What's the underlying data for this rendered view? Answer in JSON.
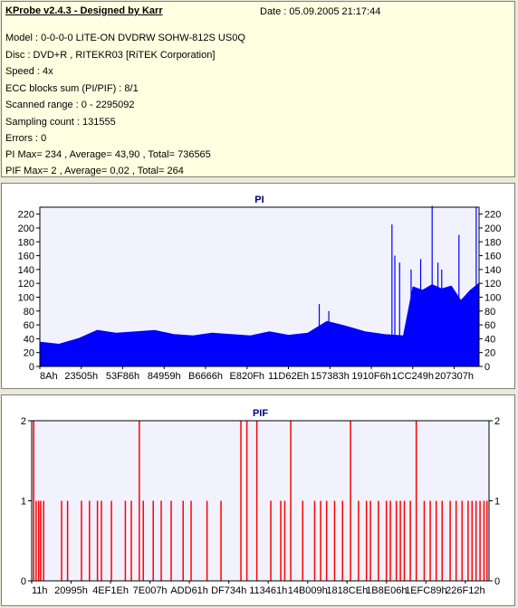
{
  "info": {
    "title": "KProbe v2.4.3 - Designed by Karr",
    "date": "Date : 05.09.2005 21:17:44",
    "lines": [
      "Model : 0-0-0-0 LITE-ON DVDRW SOHW-812S  US0Q",
      "Disc : DVD+R , RITEKR03 [RiTEK Corporation]",
      "Speed : 4x",
      "ECC blocks sum (PI/PIF) : 8/1",
      "Scanned range : 0 - 2295092",
      "Sampling count : 131555",
      "Errors : 0",
      "PI Max= 234 , Average= 43,90 , Total= 736565",
      "PIF Max= 2 , Average= 0,02 , Total= 264"
    ]
  },
  "chart_data": [
    {
      "type": "area",
      "title": "PI",
      "color": "#0000ff",
      "ylim": [
        0,
        230
      ],
      "yticks": [
        0,
        20,
        40,
        60,
        80,
        100,
        120,
        140,
        160,
        180,
        200,
        220
      ],
      "xlim": [
        0,
        2295092
      ],
      "xtick_labels": [
        "8Ah",
        "23505h",
        "53F86h",
        "84959h",
        "B6666h",
        "E820Fh",
        "11D62Eh",
        "157383h",
        "1910F6h",
        "1CC249h",
        "207307h"
      ],
      "x": [
        0,
        100000,
        200000,
        300000,
        400000,
        500000,
        600000,
        700000,
        800000,
        900000,
        1000000,
        1100000,
        1200000,
        1300000,
        1400000,
        1500000,
        1600000,
        1700000,
        1800000,
        1900000,
        1950000,
        2000000,
        2050000,
        2100000,
        2150000,
        2200000,
        2250000,
        2295092
      ],
      "values": [
        35,
        32,
        40,
        52,
        48,
        50,
        52,
        46,
        44,
        48,
        46,
        44,
        50,
        45,
        48,
        65,
        58,
        50,
        46,
        44,
        115,
        110,
        118,
        112,
        116,
        95,
        110,
        120
      ],
      "spikes": [
        {
          "x": 1460000,
          "value": 90
        },
        {
          "x": 1510000,
          "value": 80
        },
        {
          "x": 1840000,
          "value": 205
        },
        {
          "x": 1855000,
          "value": 160
        },
        {
          "x": 1880000,
          "value": 150
        },
        {
          "x": 1940000,
          "value": 140
        },
        {
          "x": 1990000,
          "value": 155
        },
        {
          "x": 2050000,
          "value": 232
        },
        {
          "x": 2080000,
          "value": 150
        },
        {
          "x": 2100000,
          "value": 140
        },
        {
          "x": 2190000,
          "value": 190
        },
        {
          "x": 2280000,
          "value": 230
        }
      ]
    },
    {
      "type": "bar",
      "title": "PIF",
      "color": "#ff0000",
      "ylim": [
        0,
        2
      ],
      "yticks": [
        0,
        1,
        2
      ],
      "xlim": [
        0,
        2295092
      ],
      "xtick_labels": [
        "11h",
        "20995h",
        "4EF1Eh",
        "7E007h",
        "ADD61h",
        "DF734h",
        "113461h",
        "14B009h",
        "1818CEh",
        "1B8E06h",
        "1EFC89h",
        "226F12h"
      ],
      "x": [
        10000,
        22000,
        35000,
        45000,
        60000,
        150000,
        180000,
        250000,
        290000,
        330000,
        350000,
        400000,
        470000,
        500000,
        540000,
        560000,
        610000,
        650000,
        700000,
        760000,
        800000,
        880000,
        950000,
        1050000,
        1080000,
        1130000,
        1200000,
        1250000,
        1270000,
        1300000,
        1360000,
        1420000,
        1450000,
        1480000,
        1520000,
        1560000,
        1600000,
        1640000,
        1680000,
        1700000,
        1740000,
        1780000,
        1800000,
        1830000,
        1850000,
        1870000,
        1900000,
        1930000,
        1970000,
        2000000,
        2030000,
        2060000,
        2100000,
        2130000,
        2160000,
        2190000,
        2210000,
        2230000,
        2250000,
        2270000,
        2285000
      ],
      "values": [
        2,
        1,
        1,
        1,
        1,
        1,
        1,
        1,
        1,
        1,
        1,
        1,
        1,
        1,
        2,
        1,
        1,
        1,
        1,
        1,
        1,
        1,
        1,
        2,
        2,
        2,
        1,
        1,
        1,
        2,
        1,
        1,
        1,
        1,
        1,
        1,
        2,
        1,
        1,
        1,
        1,
        1,
        1,
        1,
        1,
        1,
        1,
        2,
        1,
        1,
        1,
        1,
        1,
        1,
        1,
        1,
        1,
        1,
        1,
        1,
        1
      ]
    }
  ]
}
